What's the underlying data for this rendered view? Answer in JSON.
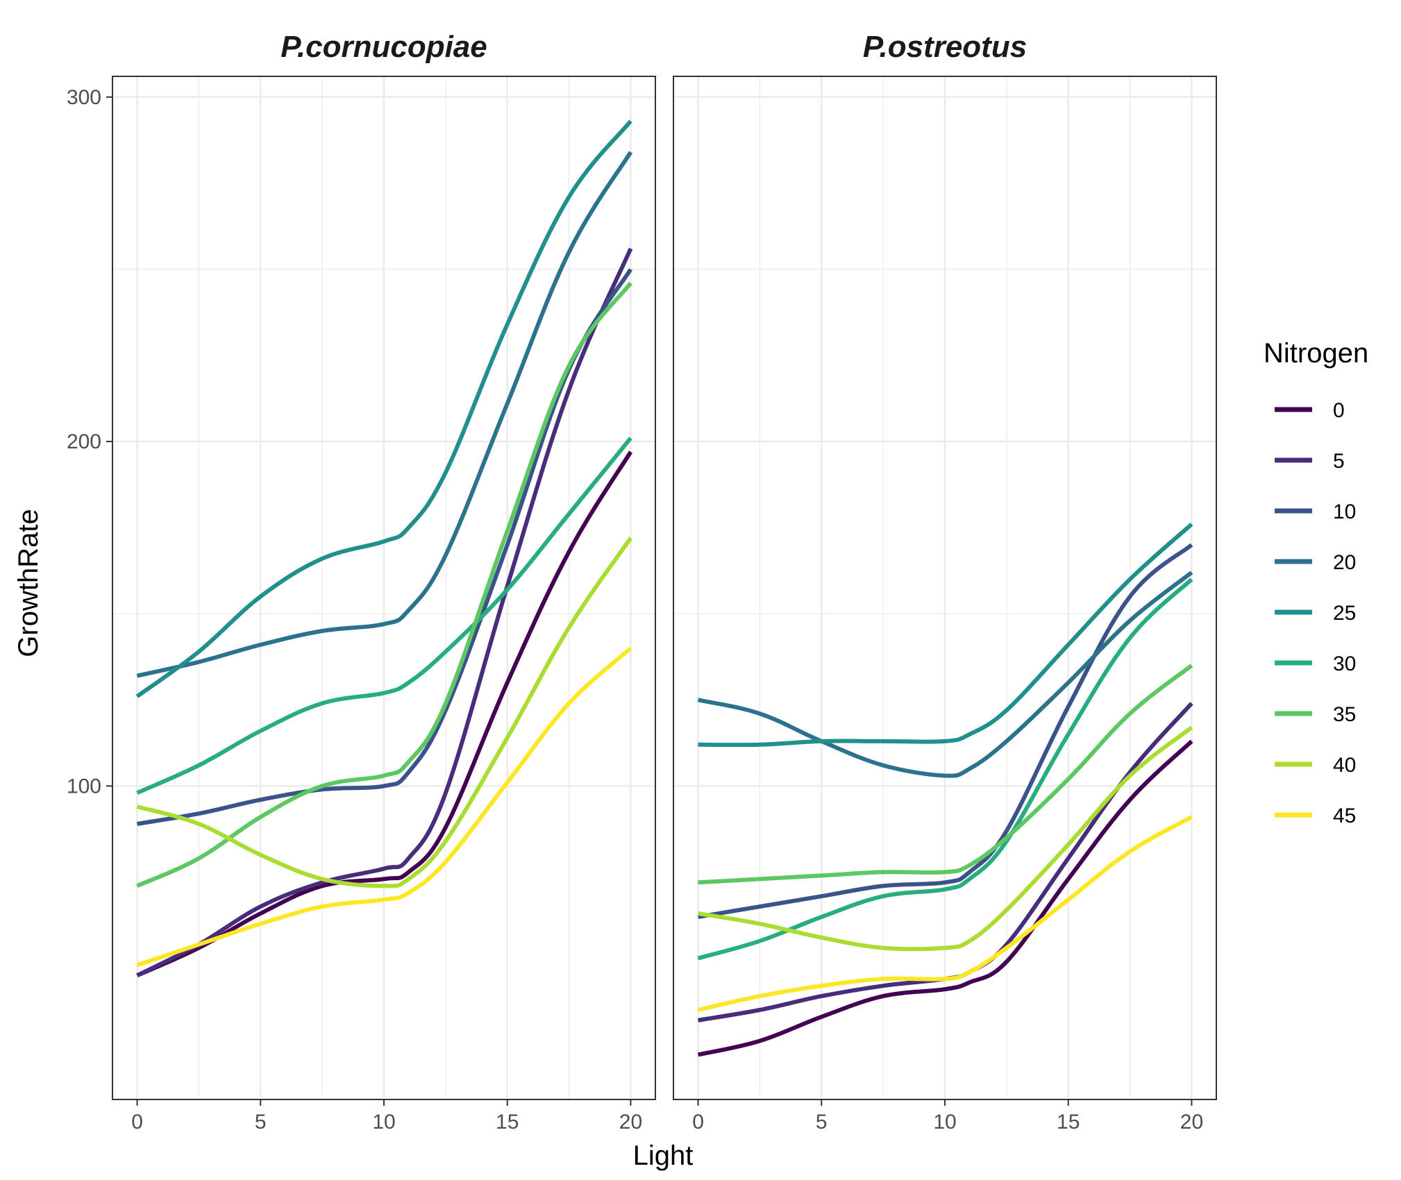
{
  "chart_data": {
    "type": "line",
    "xlabel": "Light",
    "ylabel": "GrowthRate",
    "xlim": [
      -1,
      21
    ],
    "ylim": [
      9,
      306
    ],
    "x_ticks": [
      0,
      5,
      10,
      15,
      20
    ],
    "y_ticks": [
      100,
      200,
      300
    ],
    "grid": true,
    "legend": {
      "title": "Nitrogen",
      "position": "right",
      "entries": [
        {
          "label": "0",
          "color": "#440154"
        },
        {
          "label": "5",
          "color": "#472D7B"
        },
        {
          "label": "10",
          "color": "#3B528B"
        },
        {
          "label": "20",
          "color": "#2C728E"
        },
        {
          "label": "25",
          "color": "#21908C"
        },
        {
          "label": "30",
          "color": "#27AD81"
        },
        {
          "label": "35",
          "color": "#5DC863"
        },
        {
          "label": "40",
          "color": "#AADC32"
        },
        {
          "label": "45",
          "color": "#FDE725"
        }
      ]
    },
    "panels": [
      {
        "title": "P.cornucopiae",
        "series": [
          {
            "name": "0",
            "color": "#440154",
            "x": [
              0,
              2.5,
              5,
              7.5,
              10,
              11,
              12.5,
              15,
              17.5,
              20
            ],
            "y": [
              45,
              53,
              63,
              71,
              73,
              75,
              88,
              130,
              168,
              197
            ]
          },
          {
            "name": "5",
            "color": "#472D7B",
            "x": [
              0,
              2.5,
              5,
              7.5,
              10,
              11,
              12.5,
              15,
              17.5,
              20
            ],
            "y": [
              45,
              54,
              65,
              72,
              76,
              79,
              98,
              158,
              215,
              256
            ]
          },
          {
            "name": "10",
            "color": "#3B528B",
            "x": [
              0,
              2.5,
              5,
              7.5,
              10,
              11,
              12.5,
              15,
              17.5,
              20
            ],
            "y": [
              89,
              92,
              96,
              99,
              100,
              104,
              122,
              170,
              221,
              250
            ]
          },
          {
            "name": "20",
            "color": "#2C728E",
            "x": [
              0,
              2.5,
              5,
              7.5,
              10,
              11,
              12.5,
              15,
              17.5,
              20
            ],
            "y": [
              132,
              136,
              141,
              145,
              147,
              151,
              167,
              211,
              255,
              284
            ]
          },
          {
            "name": "25",
            "color": "#21908C",
            "x": [
              0,
              2.5,
              5,
              7.5,
              10,
              11,
              12.5,
              15,
              17.5,
              20
            ],
            "y": [
              126,
              139,
              155,
              166,
              171,
              175,
              191,
              234,
              271,
              293
            ]
          },
          {
            "name": "30",
            "color": "#27AD81",
            "x": [
              0,
              2.5,
              5,
              7.5,
              10,
              11,
              12.5,
              15,
              17.5,
              20
            ],
            "y": [
              98,
              106,
              116,
              124,
              127,
              130,
              139,
              157,
              179,
              201
            ]
          },
          {
            "name": "35",
            "color": "#5DC863",
            "x": [
              0,
              2.5,
              5,
              7.5,
              10,
              11,
              12.5,
              15,
              17.5,
              20
            ],
            "y": [
              71,
              79,
              91,
              100,
              103,
              107,
              124,
              174,
              222,
              246
            ]
          },
          {
            "name": "40",
            "color": "#AADC32",
            "x": [
              0,
              2.5,
              5,
              7.5,
              10,
              11,
              12.5,
              15,
              17.5,
              20
            ],
            "y": [
              94,
              89,
              80,
              73,
              71,
              73,
              84,
              114,
              146,
              172
            ]
          },
          {
            "name": "45",
            "color": "#FDE725",
            "x": [
              0,
              2.5,
              5,
              7.5,
              10,
              11,
              12.5,
              15,
              17.5,
              20
            ],
            "y": [
              48,
              54,
              60,
              65,
              67,
              69,
              78,
              101,
              124,
              140
            ]
          }
        ]
      },
      {
        "title": "P.ostreotus",
        "series": [
          {
            "name": "0",
            "color": "#440154",
            "x": [
              0,
              2.5,
              5,
              7.5,
              10,
              11,
              12.5,
              15,
              17.5,
              20
            ],
            "y": [
              22,
              26,
              33,
              39,
              41,
              43,
              49,
              73,
              96,
              113
            ]
          },
          {
            "name": "5",
            "color": "#472D7B",
            "x": [
              0,
              2.5,
              5,
              7.5,
              10,
              11,
              12.5,
              15,
              17.5,
              20
            ],
            "y": [
              32,
              35,
              39,
              42,
              44,
              46,
              54,
              79,
              104,
              124
            ]
          },
          {
            "name": "10",
            "color": "#3B528B",
            "x": [
              0,
              2.5,
              5,
              7.5,
              10,
              11,
              12.5,
              15,
              17.5,
              20
            ],
            "y": [
              62,
              65,
              68,
              71,
              72,
              75,
              87,
              123,
              155,
              170
            ]
          },
          {
            "name": "20",
            "color": "#2C728E",
            "x": [
              0,
              2.5,
              5,
              7.5,
              10,
              11,
              12.5,
              15,
              17.5,
              20
            ],
            "y": [
              125,
              121,
              113,
              106,
              103,
              105,
              113,
              130,
              148,
              162
            ]
          },
          {
            "name": "25",
            "color": "#21908C",
            "x": [
              0,
              2.5,
              5,
              7.5,
              10,
              11,
              12.5,
              15,
              17.5,
              20
            ],
            "y": [
              112,
              112,
              113,
              113,
              113,
              115,
              122,
              141,
              160,
              176
            ]
          },
          {
            "name": "30",
            "color": "#27AD81",
            "x": [
              0,
              2.5,
              5,
              7.5,
              10,
              11,
              12.5,
              15,
              17.5,
              20
            ],
            "y": [
              50,
              55,
              62,
              68,
              70,
              73,
              84,
              115,
              143,
              160
            ]
          },
          {
            "name": "35",
            "color": "#5DC863",
            "x": [
              0,
              2.5,
              5,
              7.5,
              10,
              11,
              12.5,
              15,
              17.5,
              20
            ],
            "y": [
              72,
              73,
              74,
              75,
              75,
              77,
              85,
              102,
              121,
              135
            ]
          },
          {
            "name": "40",
            "color": "#AADC32",
            "x": [
              0,
              2.5,
              5,
              7.5,
              10,
              11,
              12.5,
              15,
              17.5,
              20
            ],
            "y": [
              63,
              60,
              56,
              53,
              53,
              55,
              64,
              83,
              103,
              117
            ]
          },
          {
            "name": "45",
            "color": "#FDE725",
            "x": [
              0,
              2.5,
              5,
              7.5,
              10,
              11,
              12.5,
              15,
              17.5,
              20
            ],
            "y": [
              35,
              39,
              42,
              44,
              44,
              46,
              53,
              67,
              81,
              91
            ]
          }
        ]
      }
    ]
  }
}
